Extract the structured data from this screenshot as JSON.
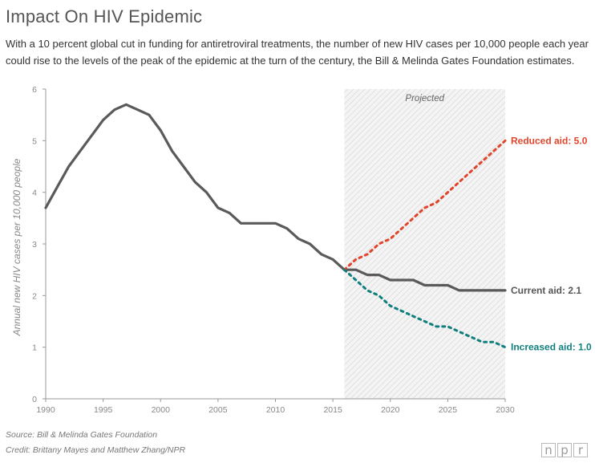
{
  "title": "Impact On HIV Epidemic",
  "subtitle": "With a 10 percent global cut in funding for antiretroviral treatments, the number of new HIV cases per 10,000 people each year could rise to the levels of the peak of the epidemic at the turn of the century, the Bill & Melinda Gates Foundation estimates.",
  "source": "Source: Bill & Melinda Gates Foundation",
  "credit": "Credit: Brittany Mayes and Matthew Zhang/NPR",
  "logo": [
    "n",
    "p",
    "r"
  ],
  "chart_data": {
    "type": "line",
    "ylabel": "Annual new HIV cases per 10,000 people",
    "xlim": [
      1990,
      2030
    ],
    "ylim": [
      0,
      6
    ],
    "x_ticks": [
      1990,
      1995,
      2000,
      2005,
      2010,
      2015,
      2020,
      2025,
      2030
    ],
    "y_ticks": [
      0,
      1,
      2,
      3,
      4,
      5,
      6
    ],
    "grid": false,
    "projection": {
      "label": "Projected",
      "start": 2016,
      "end": 2030
    },
    "series": [
      {
        "key": "historical",
        "style": "solid",
        "color": "#5a5a5a",
        "x": [
          1990,
          1991,
          1992,
          1993,
          1994,
          1995,
          1996,
          1997,
          1998,
          1999,
          2000,
          2001,
          2002,
          2003,
          2004,
          2005,
          2006,
          2007,
          2008,
          2009,
          2010,
          2011,
          2012,
          2013,
          2014,
          2015,
          2016
        ],
        "y": [
          3.7,
          4.1,
          4.5,
          4.8,
          5.1,
          5.4,
          5.6,
          5.7,
          5.6,
          5.5,
          5.2,
          4.8,
          4.5,
          4.2,
          4.0,
          3.7,
          3.6,
          3.4,
          3.4,
          3.4,
          3.4,
          3.3,
          3.1,
          3.0,
          2.8,
          2.7,
          2.5
        ]
      },
      {
        "key": "current",
        "name": "Current aid: 2.1",
        "style": "solid",
        "color": "#5a5a5a",
        "label_color": "#555555",
        "x": [
          2016,
          2017,
          2018,
          2019,
          2020,
          2021,
          2022,
          2023,
          2024,
          2025,
          2026,
          2027,
          2028,
          2029,
          2030
        ],
        "y": [
          2.5,
          2.5,
          2.4,
          2.4,
          2.3,
          2.3,
          2.3,
          2.2,
          2.2,
          2.2,
          2.1,
          2.1,
          2.1,
          2.1,
          2.1
        ]
      },
      {
        "key": "reduced",
        "name": "Reduced aid: 5.0",
        "style": "dotted",
        "color": "#e0452c",
        "label_color": "#e0452c",
        "x": [
          2016,
          2017,
          2018,
          2019,
          2020,
          2021,
          2022,
          2023,
          2024,
          2025,
          2026,
          2027,
          2028,
          2029,
          2030
        ],
        "y": [
          2.5,
          2.7,
          2.8,
          3.0,
          3.1,
          3.3,
          3.5,
          3.7,
          3.8,
          4.0,
          4.2,
          4.4,
          4.6,
          4.8,
          5.0
        ]
      },
      {
        "key": "increased",
        "name": "Increased aid: 1.0",
        "style": "dotted",
        "color": "#0f7f7d",
        "label_color": "#0f7f7d",
        "x": [
          2016,
          2017,
          2018,
          2019,
          2020,
          2021,
          2022,
          2023,
          2024,
          2025,
          2026,
          2027,
          2028,
          2029,
          2030
        ],
        "y": [
          2.5,
          2.3,
          2.1,
          2.0,
          1.8,
          1.7,
          1.6,
          1.5,
          1.4,
          1.4,
          1.3,
          1.2,
          1.1,
          1.1,
          1.0
        ]
      }
    ]
  }
}
